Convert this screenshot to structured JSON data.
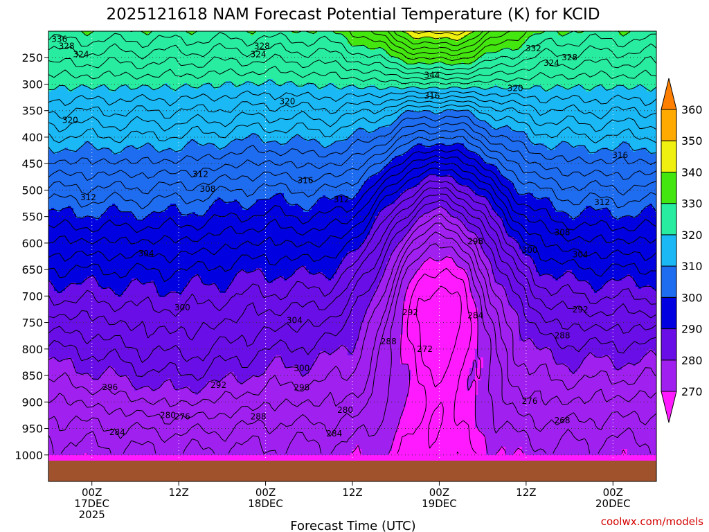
{
  "chart_data": {
    "type": "contour",
    "title": "2025121618 NAM Forecast Potential Temperature (K) for KCID",
    "xlabel": "Forecast Time (UTC)",
    "ylabel": "",
    "credit": "coolwx.com/models",
    "x_ticks": [
      {
        "hour": 6,
        "lines": [
          "00Z",
          "17DEC",
          "2025"
        ]
      },
      {
        "hour": 18,
        "lines": [
          "12Z"
        ]
      },
      {
        "hour": 30,
        "lines": [
          "00Z",
          "18DEC"
        ]
      },
      {
        "hour": 42,
        "lines": [
          "12Z"
        ]
      },
      {
        "hour": 54,
        "lines": [
          "00Z",
          "19DEC"
        ]
      },
      {
        "hour": 66,
        "lines": [
          "12Z"
        ]
      },
      {
        "hour": 78,
        "lines": [
          "00Z",
          "20DEC"
        ]
      }
    ],
    "xlim_hours": [
      0,
      84
    ],
    "y_axis_pressure_hPa": [
      250,
      300,
      350,
      400,
      450,
      500,
      550,
      600,
      650,
      700,
      750,
      800,
      850,
      900,
      950,
      1000
    ],
    "ylim_hPa": [
      200,
      1050
    ],
    "grid": true,
    "colorbar": {
      "levels": [
        270,
        280,
        290,
        300,
        310,
        320,
        330,
        340,
        350,
        360
      ],
      "colors": [
        "#ff1aff",
        "#a020f0",
        "#6a0ee8",
        "#0000e0",
        "#1e6cf0",
        "#1ab8f5",
        "#28eda0",
        "#44e610",
        "#f0f010",
        "#ffaa00",
        "#ff8000"
      ],
      "placement": "right"
    },
    "contour_interval_K": 2,
    "contour_labels": [
      {
        "hour": 1.5,
        "p": 215,
        "v": "336"
      },
      {
        "hour": 2.5,
        "p": 228,
        "v": "328"
      },
      {
        "hour": 4.5,
        "p": 244,
        "v": "324"
      },
      {
        "hour": 3.0,
        "p": 368,
        "v": "320"
      },
      {
        "hour": 5.5,
        "p": 514,
        "v": "312"
      },
      {
        "hour": 13.5,
        "p": 620,
        "v": "304"
      },
      {
        "hour": 8.5,
        "p": 872,
        "v": "296"
      },
      {
        "hour": 9.5,
        "p": 957,
        "v": "284"
      },
      {
        "hour": 16.5,
        "p": 925,
        "v": "280"
      },
      {
        "hour": 18.5,
        "p": 928,
        "v": "276"
      },
      {
        "hour": 18.5,
        "p": 722,
        "v": "300"
      },
      {
        "hour": 21.0,
        "p": 470,
        "v": "312"
      },
      {
        "hour": 22.0,
        "p": 498,
        "v": "308"
      },
      {
        "hour": 23.5,
        "p": 868,
        "v": "292"
      },
      {
        "hour": 29.5,
        "p": 228,
        "v": "328"
      },
      {
        "hour": 29.0,
        "p": 244,
        "v": "324"
      },
      {
        "hour": 33.0,
        "p": 333,
        "v": "320"
      },
      {
        "hour": 34.0,
        "p": 746,
        "v": "304"
      },
      {
        "hour": 35.5,
        "p": 482,
        "v": "316"
      },
      {
        "hour": 35.0,
        "p": 836,
        "v": "300"
      },
      {
        "hour": 35.0,
        "p": 873,
        "v": "298"
      },
      {
        "hour": 29.0,
        "p": 928,
        "v": "288"
      },
      {
        "hour": 39.5,
        "p": 960,
        "v": "284"
      },
      {
        "hour": 40.5,
        "p": 518,
        "v": "312"
      },
      {
        "hour": 41.0,
        "p": 915,
        "v": "280"
      },
      {
        "hour": 47.0,
        "p": 786,
        "v": "288"
      },
      {
        "hour": 50.0,
        "p": 731,
        "v": "292"
      },
      {
        "hour": 52.0,
        "p": 800,
        "v": "272"
      },
      {
        "hour": 53.0,
        "p": 283,
        "v": "344"
      },
      {
        "hour": 53.0,
        "p": 322,
        "v": "316"
      },
      {
        "hour": 59.0,
        "p": 597,
        "v": "298"
      },
      {
        "hour": 59.0,
        "p": 737,
        "v": "284"
      },
      {
        "hour": 64.5,
        "p": 308,
        "v": "320"
      },
      {
        "hour": 66.5,
        "p": 613,
        "v": "300"
      },
      {
        "hour": 67.0,
        "p": 233,
        "v": "332"
      },
      {
        "hour": 69.5,
        "p": 260,
        "v": "324"
      },
      {
        "hour": 72.0,
        "p": 250,
        "v": "328"
      },
      {
        "hour": 66.5,
        "p": 898,
        "v": "276"
      },
      {
        "hour": 71.0,
        "p": 775,
        "v": "288"
      },
      {
        "hour": 71.0,
        "p": 580,
        "v": "308"
      },
      {
        "hour": 73.5,
        "p": 622,
        "v": "304"
      },
      {
        "hour": 73.5,
        "p": 726,
        "v": "292"
      },
      {
        "hour": 76.5,
        "p": 523,
        "v": "312"
      },
      {
        "hour": 71.0,
        "p": 935,
        "v": "268"
      },
      {
        "hour": 79.0,
        "p": 434,
        "v": "316"
      }
    ]
  }
}
